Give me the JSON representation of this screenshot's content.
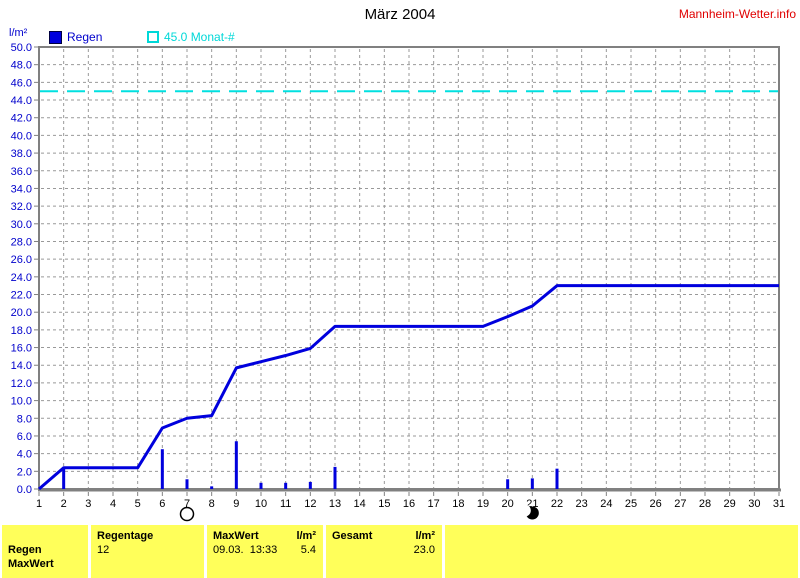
{
  "header": {
    "title": "März 2004",
    "site_link": "Mannheim-Wetter.info"
  },
  "legend": {
    "unit_label": "l/m²",
    "rain_label": "Regen",
    "month_threshold_label": "45.0 Monat-#"
  },
  "colors": {
    "series_blue": "#0000dd",
    "axis_label_blue": "#0000cc",
    "threshold_cyan": "#00e0e0",
    "grid_gray": "#999999",
    "frame_gray": "#808080",
    "xlabel_black": "#000000",
    "link_red": "#e00000",
    "table_yellow": "#ffff5a"
  },
  "chart_data": {
    "type": "line+bar",
    "title": "März 2004",
    "ylabel": "l/m²",
    "ylim": [
      0,
      50
    ],
    "ytick_step": 2,
    "y_ticks": [
      "0.0",
      "2.0",
      "4.0",
      "6.0",
      "8.0",
      "10.0",
      "12.0",
      "14.0",
      "16.0",
      "18.0",
      "20.0",
      "22.0",
      "24.0",
      "26.0",
      "28.0",
      "30.0",
      "32.0",
      "34.0",
      "36.0",
      "38.0",
      "40.0",
      "42.0",
      "44.0",
      "46.0",
      "48.0",
      "50.0"
    ],
    "x_ticks": [
      1,
      2,
      3,
      4,
      5,
      6,
      7,
      8,
      9,
      10,
      11,
      12,
      13,
      14,
      15,
      16,
      17,
      18,
      19,
      20,
      21,
      22,
      23,
      24,
      25,
      26,
      27,
      28,
      29,
      30,
      31
    ],
    "grid": "dashed",
    "threshold": {
      "value": 45.0,
      "label": "45.0 Monat-#"
    },
    "bars_daily_rain": [
      {
        "day": 2,
        "value": 2.4
      },
      {
        "day": 6,
        "value": 4.5
      },
      {
        "day": 7,
        "value": 1.1
      },
      {
        "day": 8,
        "value": 0.3
      },
      {
        "day": 9,
        "value": 5.4
      },
      {
        "day": 10,
        "value": 0.7
      },
      {
        "day": 11,
        "value": 0.7
      },
      {
        "day": 12,
        "value": 0.8
      },
      {
        "day": 13,
        "value": 2.5
      },
      {
        "day": 20,
        "value": 1.1
      },
      {
        "day": 21,
        "value": 1.2
      },
      {
        "day": 22,
        "value": 2.3
      }
    ],
    "line_cumulative": [
      0.0,
      2.4,
      2.4,
      2.4,
      2.4,
      6.9,
      8.0,
      8.3,
      13.7,
      14.4,
      15.1,
      15.9,
      18.4,
      18.4,
      18.4,
      18.4,
      18.4,
      18.4,
      18.4,
      19.5,
      20.7,
      23.0,
      23.0,
      23.0,
      23.0,
      23.0,
      23.0,
      23.0,
      23.0,
      23.0,
      23.0
    ],
    "moon_markers": [
      {
        "day": 7,
        "type": "full-moon"
      },
      {
        "day": 21,
        "type": "new-moon"
      }
    ]
  },
  "summary_table": {
    "row_labels": {
      "line1": "Regen",
      "line2": "MaxWert"
    },
    "regentage": {
      "header": "Regentage",
      "value": "12"
    },
    "maxwert": {
      "header": "MaxWert",
      "unit": "l/m²",
      "datetime": "09.03.  13:33",
      "value": "5.4"
    },
    "gesamt": {
      "header": "Gesamt",
      "unit": "l/m²",
      "value": "23.0"
    }
  }
}
